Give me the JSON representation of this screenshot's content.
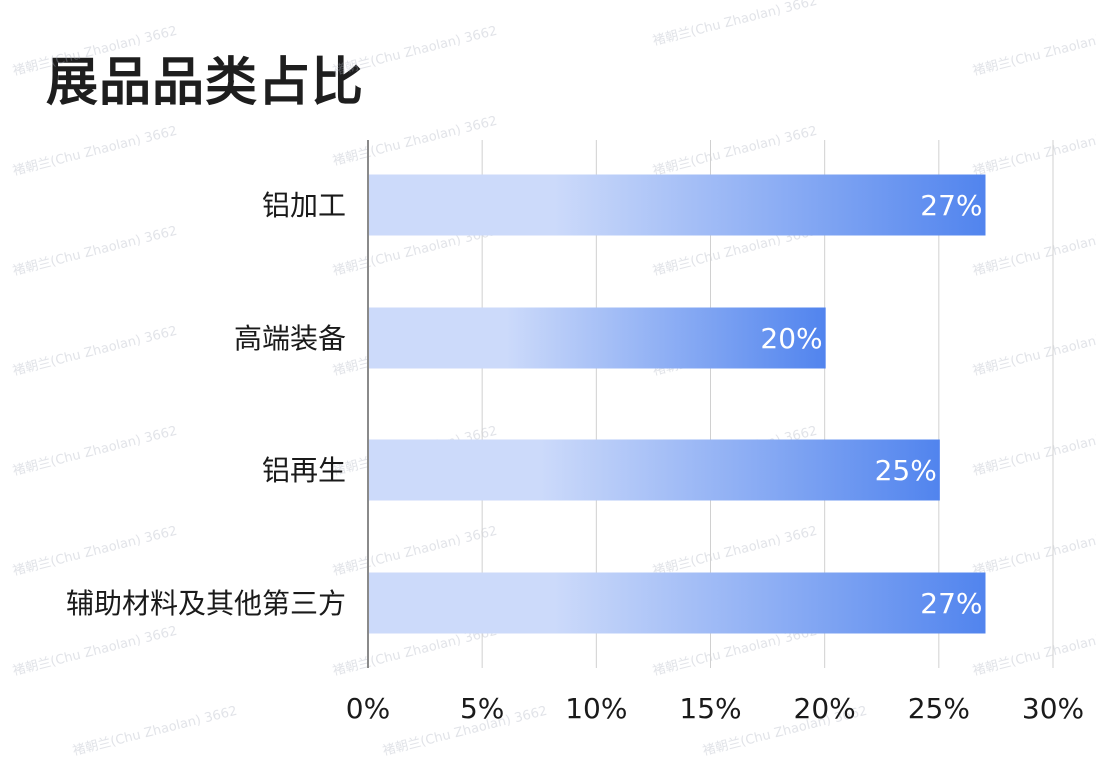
{
  "chart_data": {
    "type": "bar",
    "orientation": "horizontal",
    "title": "展品品类占比",
    "categories": [
      "铝加工",
      "高端装备",
      "铝再生",
      "辅助材料及其他第三方"
    ],
    "values": [
      27,
      20,
      25,
      27
    ],
    "value_labels": [
      "27%",
      "20%",
      "25%",
      "27%"
    ],
    "xlim": [
      0,
      30
    ],
    "x_ticks": [
      0,
      5,
      10,
      15,
      20,
      25,
      30
    ],
    "x_tick_labels": [
      "0%",
      "5%",
      "10%",
      "15%",
      "20%",
      "25%",
      "30%"
    ],
    "grid": true,
    "legend": "none",
    "colors": {
      "bar_start": "#ccdafa",
      "bar_end": "#5184ee",
      "grid": "#d0d0d0",
      "axis": "#8a8a8a"
    }
  },
  "watermark_text": "褚朝兰(Chu Zhaolan) 3662"
}
